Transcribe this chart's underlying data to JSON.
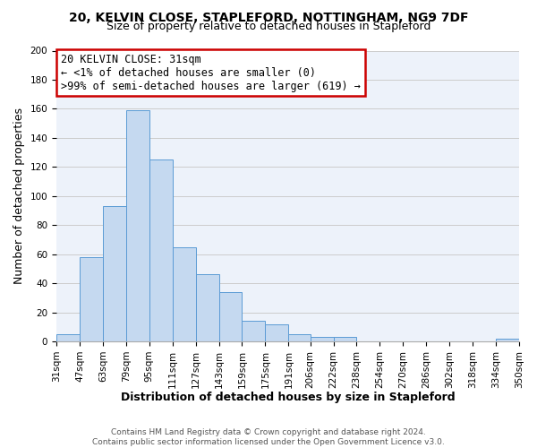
{
  "title_line1": "20, KELVIN CLOSE, STAPLEFORD, NOTTINGHAM, NG9 7DF",
  "title_line2": "Size of property relative to detached houses in Stapleford",
  "xlabel": "Distribution of detached houses by size in Stapleford",
  "ylabel": "Number of detached properties",
  "bar_edges": [
    31,
    47,
    63,
    79,
    95,
    111,
    127,
    143,
    159,
    175,
    191,
    206,
    222,
    238,
    254,
    270,
    286,
    302,
    318,
    334,
    350
  ],
  "bar_heights": [
    5,
    58,
    93,
    159,
    125,
    65,
    46,
    34,
    14,
    12,
    5,
    3,
    3,
    0,
    0,
    0,
    0,
    0,
    0,
    2
  ],
  "bar_color": "#c5d9f0",
  "bar_edgecolor": "#5b9bd5",
  "annotation_line1": "20 KELVIN CLOSE: 31sqm",
  "annotation_line2": "← <1% of detached houses are smaller (0)",
  "annotation_line3": ">99% of semi-detached houses are larger (619) →",
  "annotation_box_facecolor": "white",
  "annotation_box_edgecolor": "#cc0000",
  "ylim": [
    0,
    200
  ],
  "yticks": [
    0,
    20,
    40,
    60,
    80,
    100,
    120,
    140,
    160,
    180,
    200
  ],
  "xtick_labels": [
    "31sqm",
    "47sqm",
    "63sqm",
    "79sqm",
    "95sqm",
    "111sqm",
    "127sqm",
    "143sqm",
    "159sqm",
    "175sqm",
    "191sqm",
    "206sqm",
    "222sqm",
    "238sqm",
    "254sqm",
    "270sqm",
    "286sqm",
    "302sqm",
    "318sqm",
    "334sqm",
    "350sqm"
  ],
  "footer_line1": "Contains HM Land Registry data © Crown copyright and database right 2024.",
  "footer_line2": "Contains public sector information licensed under the Open Government Licence v3.0.",
  "grid_color": "#cccccc",
  "background_color": "#edf2fa",
  "title_fontsize": 10,
  "subtitle_fontsize": 9,
  "ylabel_fontsize": 9,
  "xlabel_fontsize": 9,
  "tick_fontsize": 7.5,
  "footer_fontsize": 6.5,
  "ann_fontsize": 8.5
}
